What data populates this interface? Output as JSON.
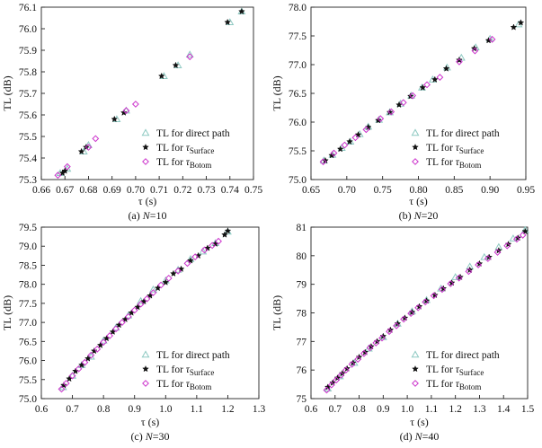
{
  "figure": {
    "colors": {
      "direct": "#8ec9c2",
      "surface": "#111111",
      "bottom": "#cc33cc",
      "axis": "#222222"
    },
    "legend": {
      "direct": "TL for direct path",
      "surface_prefix": "TL for ",
      "surface_tau": "τ",
      "surface_sub": "Surface",
      "bottom_prefix": "TL for ",
      "bottom_tau": "τ",
      "bottom_sub": "Botom"
    }
  },
  "chart_data": [
    {
      "type": "scatter",
      "caption_prefix": "(a) ",
      "caption_var": "N",
      "caption_suffix": "=10",
      "xlabel": "τ (s)",
      "ylabel": "TL (dB)",
      "xlim": [
        0.66,
        0.75
      ],
      "ylim": [
        75.3,
        76.1
      ],
      "xticks": [
        "0.66",
        "0.67",
        "0.68",
        "0.69",
        "0.70",
        "0.71",
        "0.72",
        "0.73",
        "0.74",
        "0.75"
      ],
      "yticks": [
        "75.3",
        "75.4",
        "75.5",
        "75.6",
        "75.7",
        "75.8",
        "75.9",
        "76.0",
        "76.1"
      ],
      "series": [
        {
          "name": "TL for direct path",
          "marker": "triangle",
          "x": [
            0.668,
            0.671,
            0.678,
            0.68,
            0.692,
            0.696,
            0.712,
            0.718,
            0.723,
            0.74,
            0.745
          ],
          "y": [
            75.33,
            75.35,
            75.43,
            75.46,
            75.58,
            75.62,
            75.78,
            75.83,
            75.88,
            76.03,
            76.08
          ]
        },
        {
          "name": "TL for τSurface",
          "marker": "star",
          "x": [
            0.669,
            0.67,
            0.677,
            0.679,
            0.691,
            0.695,
            0.711,
            0.717,
            0.739,
            0.745
          ],
          "y": [
            75.33,
            75.34,
            75.43,
            75.45,
            75.58,
            75.61,
            75.78,
            75.83,
            76.03,
            76.08
          ]
        },
        {
          "name": "TL for τBotom",
          "marker": "diamond",
          "x": [
            0.667,
            0.671,
            0.68,
            0.683,
            0.696,
            0.7,
            0.723
          ],
          "y": [
            75.32,
            75.36,
            75.45,
            75.49,
            75.62,
            75.65,
            75.87
          ]
        }
      ]
    },
    {
      "type": "scatter",
      "caption_prefix": "(b) ",
      "caption_var": "N",
      "caption_suffix": "=20",
      "xlabel": "τ (s)",
      "ylabel": "TL (dB)",
      "xlim": [
        0.65,
        0.95
      ],
      "ylim": [
        75.0,
        78.0
      ],
      "xticks": [
        "0.65",
        "0.70",
        "0.75",
        "0.80",
        "0.85",
        "0.90",
        "0.95"
      ],
      "yticks": [
        "75.0",
        "75.5",
        "76.0",
        "76.5",
        "77.0",
        "77.5",
        "78.0"
      ],
      "series": [
        {
          "name": "TL for direct path",
          "marker": "triangle",
          "x": [
            0.668,
            0.68,
            0.693,
            0.705,
            0.718,
            0.73,
            0.745,
            0.76,
            0.775,
            0.79,
            0.805,
            0.82,
            0.84,
            0.86,
            0.88,
            0.9,
            0.94
          ],
          "y": [
            75.33,
            75.43,
            75.55,
            75.66,
            75.79,
            75.92,
            76.04,
            76.17,
            76.32,
            76.46,
            76.6,
            76.74,
            76.95,
            77.12,
            77.3,
            77.45,
            77.7
          ]
        },
        {
          "name": "TL for τSurface",
          "marker": "star",
          "x": [
            0.67,
            0.679,
            0.691,
            0.704,
            0.716,
            0.73,
            0.744,
            0.76,
            0.773,
            0.789,
            0.806,
            0.823,
            0.839,
            0.857,
            0.878,
            0.898,
            0.933,
            0.943
          ],
          "y": [
            75.33,
            75.42,
            75.53,
            75.66,
            75.78,
            75.91,
            76.03,
            76.17,
            76.3,
            76.45,
            76.6,
            76.74,
            76.93,
            77.08,
            77.28,
            77.42,
            77.65,
            77.73
          ]
        },
        {
          "name": "TL for τBotom",
          "marker": "diamond",
          "x": [
            0.667,
            0.682,
            0.697,
            0.712,
            0.727,
            0.747,
            0.762,
            0.779,
            0.792,
            0.812,
            0.83,
            0.857,
            0.879,
            0.903
          ],
          "y": [
            75.31,
            75.46,
            75.6,
            75.73,
            75.87,
            76.06,
            76.18,
            76.34,
            76.46,
            76.65,
            76.78,
            77.05,
            77.24,
            77.44
          ]
        }
      ]
    },
    {
      "type": "scatter",
      "caption_prefix": "(c) ",
      "caption_var": "N",
      "caption_suffix": "=30",
      "xlabel": "τ (s)",
      "ylabel": "TL (dB)",
      "xlim": [
        0.6,
        1.3
      ],
      "ylim": [
        75.0,
        79.5
      ],
      "xticks": [
        "0.6",
        "0.7",
        "0.8",
        "0.9",
        "1.0",
        "1.1",
        "1.2",
        "1.3"
      ],
      "yticks": [
        "75.0",
        "75.5",
        "76.0",
        "76.5",
        "77.0",
        "77.5",
        "78.0",
        "78.5",
        "79.0",
        "79.5"
      ],
      "series": [
        {
          "name": "TL for direct path",
          "marker": "triangle",
          "x": [
            0.67,
            0.7,
            0.73,
            0.76,
            0.8,
            0.84,
            0.88,
            0.92,
            0.96,
            1.0,
            1.04,
            1.08,
            1.12,
            1.16,
            1.2
          ],
          "y": [
            75.3,
            75.6,
            75.88,
            76.1,
            76.52,
            76.86,
            77.18,
            77.56,
            77.86,
            78.1,
            78.38,
            78.66,
            78.86,
            79.08,
            79.38
          ]
        },
        {
          "name": "TL for τSurface",
          "marker": "star",
          "x": [
            0.672,
            0.69,
            0.71,
            0.73,
            0.75,
            0.77,
            0.79,
            0.81,
            0.83,
            0.85,
            0.87,
            0.89,
            0.91,
            0.93,
            0.95,
            0.975,
            1.0,
            1.025,
            1.05,
            1.08,
            1.105,
            1.135,
            1.16,
            1.19,
            1.2
          ],
          "y": [
            75.35,
            75.52,
            75.72,
            75.88,
            76.05,
            76.25,
            76.4,
            76.58,
            76.75,
            76.93,
            77.08,
            77.25,
            77.4,
            77.55,
            77.7,
            77.9,
            78.05,
            78.28,
            78.4,
            78.62,
            78.75,
            78.95,
            79.06,
            79.3,
            79.4
          ]
        },
        {
          "name": "TL for τBotom",
          "marker": "diamond",
          "x": [
            0.665,
            0.68,
            0.7,
            0.72,
            0.74,
            0.76,
            0.78,
            0.8,
            0.82,
            0.84,
            0.86,
            0.88,
            0.9,
            0.92,
            0.94,
            0.96,
            0.985,
            1.01,
            1.04,
            1.07,
            1.095,
            1.125,
            1.15,
            1.17
          ],
          "y": [
            75.25,
            75.4,
            75.6,
            75.78,
            75.95,
            76.14,
            76.3,
            76.48,
            76.65,
            76.83,
            77.0,
            77.15,
            77.32,
            77.48,
            77.62,
            77.78,
            77.98,
            78.16,
            78.35,
            78.55,
            78.72,
            78.9,
            79.02,
            79.13
          ]
        }
      ]
    },
    {
      "type": "scatter",
      "caption_prefix": "(d) ",
      "caption_var": "N",
      "caption_suffix": "=40",
      "xlabel": "τ (s)",
      "ylabel": "TL (dB)",
      "xlim": [
        0.6,
        1.5
      ],
      "ylim": [
        75,
        81
      ],
      "xticks": [
        "0.6",
        "0.7",
        "0.8",
        "0.9",
        "1.0",
        "1.1",
        "1.2",
        "1.3",
        "1.4",
        "1.5"
      ],
      "yticks": [
        "75",
        "76",
        "77",
        "78",
        "79",
        "80",
        "81"
      ],
      "series": [
        {
          "name": "TL for direct path",
          "marker": "triangle",
          "x": [
            0.67,
            0.72,
            0.78,
            0.84,
            0.9,
            0.96,
            1.02,
            1.08,
            1.14,
            1.2,
            1.26,
            1.32,
            1.38,
            1.44,
            1.49
          ],
          "y": [
            75.35,
            75.78,
            76.25,
            76.75,
            77.15,
            77.62,
            78.05,
            78.45,
            78.85,
            79.25,
            79.62,
            79.95,
            80.3,
            80.6,
            80.9
          ]
        },
        {
          "name": "TL for τSurface",
          "marker": "star",
          "x": [
            0.67,
            0.69,
            0.71,
            0.73,
            0.75,
            0.775,
            0.8,
            0.825,
            0.85,
            0.875,
            0.9,
            0.93,
            0.96,
            0.99,
            1.02,
            1.05,
            1.08,
            1.115,
            1.15,
            1.185,
            1.22,
            1.26,
            1.3,
            1.34,
            1.38,
            1.42,
            1.46,
            1.49
          ],
          "y": [
            75.4,
            75.55,
            75.72,
            75.88,
            76.05,
            76.25,
            76.45,
            76.62,
            76.82,
            77.0,
            77.18,
            77.4,
            77.62,
            77.82,
            78.02,
            78.22,
            78.42,
            78.62,
            78.85,
            79.05,
            79.25,
            79.5,
            79.72,
            79.95,
            80.18,
            80.4,
            80.62,
            80.85
          ]
        },
        {
          "name": "TL for τBotom",
          "marker": "diamond",
          "x": [
            0.665,
            0.685,
            0.705,
            0.725,
            0.745,
            0.77,
            0.795,
            0.82,
            0.845,
            0.87,
            0.895,
            0.925,
            0.955,
            0.985,
            1.015,
            1.045,
            1.075,
            1.11,
            1.145,
            1.18,
            1.215,
            1.255,
            1.295,
            1.335,
            1.375,
            1.415,
            1.455,
            1.48
          ],
          "y": [
            75.3,
            75.48,
            75.65,
            75.82,
            76.0,
            76.2,
            76.38,
            76.58,
            76.78,
            76.95,
            77.12,
            77.35,
            77.55,
            77.78,
            77.98,
            78.18,
            78.38,
            78.6,
            78.82,
            79.02,
            79.22,
            79.45,
            79.68,
            79.9,
            80.12,
            80.35,
            80.58,
            80.72
          ]
        }
      ]
    }
  ]
}
